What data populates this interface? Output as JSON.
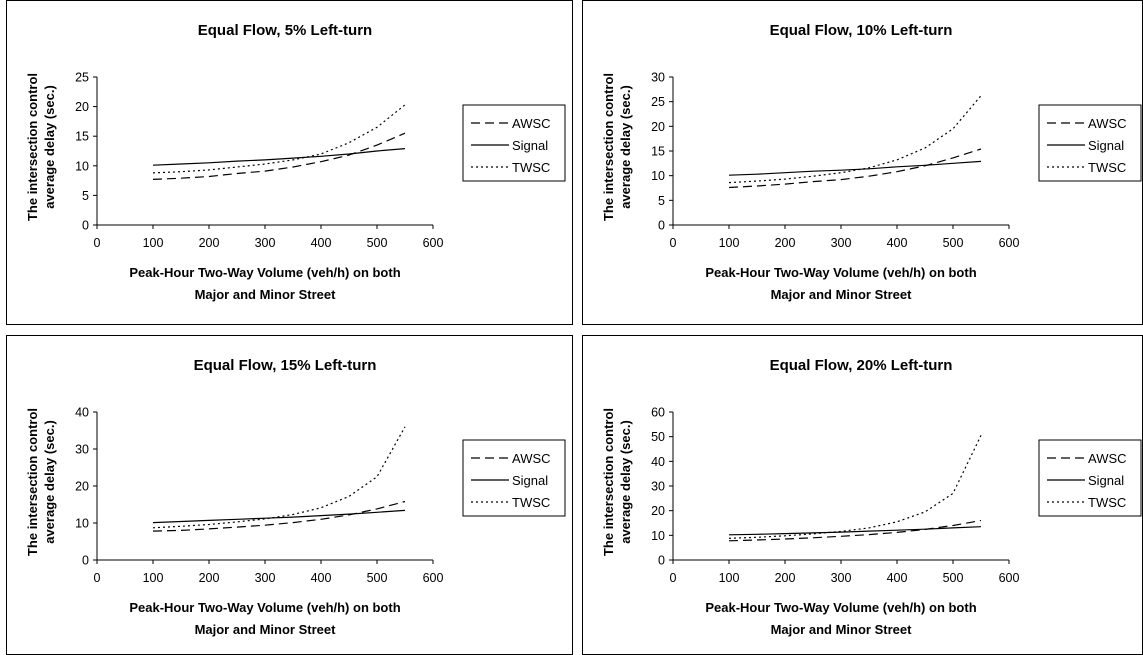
{
  "charts": [
    {
      "title": "Equal Flow, 5% Left-turn"
    },
    {
      "title": "Equal Flow, 10% Left-turn"
    },
    {
      "title": "Equal Flow, 15% Left-turn"
    },
    {
      "title": "Equal Flow, 20% Left-turn"
    }
  ],
  "chart_data": [
    {
      "type": "line",
      "title": "Equal Flow, 5% Left-turn",
      "xlabel": [
        "Peak-Hour Two-Way Volume (veh/h) on both",
        "Major and Minor Street"
      ],
      "ylabel": [
        "The intersection control",
        "average delay (sec.)"
      ],
      "xlim": [
        0,
        600
      ],
      "ylim": [
        0,
        25
      ],
      "xticks": [
        0,
        100,
        200,
        300,
        400,
        500,
        600
      ],
      "yticks": [
        0,
        5,
        10,
        15,
        20,
        25
      ],
      "grid": false,
      "legend": "right",
      "x": [
        100,
        150,
        200,
        250,
        300,
        350,
        400,
        450,
        500,
        550
      ],
      "series": [
        {
          "name": "AWSC",
          "style": "dashed",
          "values": [
            7.7,
            7.9,
            8.2,
            8.7,
            9.1,
            9.8,
            10.7,
            11.8,
            13.5,
            15.5
          ]
        },
        {
          "name": "Signal",
          "style": "solid",
          "values": [
            10.1,
            10.3,
            10.5,
            10.8,
            11.0,
            11.3,
            11.6,
            12.0,
            12.5,
            12.9
          ]
        },
        {
          "name": "TWSC",
          "style": "dotted",
          "values": [
            8.8,
            9.0,
            9.3,
            9.8,
            10.3,
            11.0,
            12.0,
            13.9,
            16.5,
            20.3
          ]
        }
      ]
    },
    {
      "type": "line",
      "title": "Equal Flow, 10% Left-turn",
      "xlabel": [
        "Peak-Hour Two-Way Volume (veh/h) on both",
        "Major and Minor Street"
      ],
      "ylabel": [
        "The intersection control",
        "average delay (sec.)"
      ],
      "xlim": [
        0,
        600
      ],
      "ylim": [
        0,
        30
      ],
      "xticks": [
        0,
        100,
        200,
        300,
        400,
        500,
        600
      ],
      "yticks": [
        0,
        5,
        10,
        15,
        20,
        25,
        30
      ],
      "grid": false,
      "legend": "right",
      "x": [
        100,
        150,
        200,
        250,
        300,
        350,
        400,
        450,
        500,
        550
      ],
      "series": [
        {
          "name": "AWSC",
          "style": "dashed",
          "values": [
            7.6,
            7.9,
            8.3,
            8.8,
            9.2,
            9.9,
            10.8,
            12.0,
            13.6,
            15.4
          ]
        },
        {
          "name": "Signal",
          "style": "solid",
          "values": [
            10.1,
            10.3,
            10.6,
            10.9,
            11.1,
            11.4,
            11.8,
            12.1,
            12.5,
            12.9
          ]
        },
        {
          "name": "TWSC",
          "style": "dotted",
          "values": [
            8.6,
            8.9,
            9.3,
            9.9,
            10.6,
            11.6,
            13.2,
            15.6,
            19.5,
            26.2
          ]
        }
      ]
    },
    {
      "type": "line",
      "title": "Equal Flow, 15% Left-turn",
      "xlabel": [
        "Peak-Hour Two-Way Volume (veh/h) on both",
        "Major and Minor Street"
      ],
      "ylabel": [
        "The intersection control",
        "average delay (sec.)"
      ],
      "xlim": [
        0,
        600
      ],
      "ylim": [
        0,
        40
      ],
      "xticks": [
        0,
        100,
        200,
        300,
        400,
        500,
        600
      ],
      "yticks": [
        0,
        10,
        20,
        30,
        40
      ],
      "grid": false,
      "legend": "right",
      "x": [
        100,
        150,
        200,
        250,
        300,
        350,
        400,
        450,
        500,
        550
      ],
      "series": [
        {
          "name": "AWSC",
          "style": "dashed",
          "values": [
            7.8,
            8.0,
            8.4,
            8.9,
            9.4,
            10.1,
            11.0,
            12.2,
            13.8,
            15.8
          ]
        },
        {
          "name": "Signal",
          "style": "solid",
          "values": [
            10.1,
            10.4,
            10.7,
            11.0,
            11.3,
            11.6,
            12.0,
            12.4,
            12.9,
            13.4
          ]
        },
        {
          "name": "TWSC",
          "style": "dotted",
          "values": [
            8.7,
            9.1,
            9.6,
            10.3,
            11.1,
            12.3,
            14.1,
            17.2,
            22.5,
            36.0
          ]
        }
      ]
    },
    {
      "type": "line",
      "title": "Equal Flow, 20% Left-turn",
      "xlabel": [
        "Peak-Hour Two-Way Volume (veh/h) on both",
        "Major and Minor Street"
      ],
      "ylabel": [
        "The intersection control",
        "average delay (sec.)"
      ],
      "xlim": [
        0,
        600
      ],
      "ylim": [
        0,
        60
      ],
      "xticks": [
        0,
        100,
        200,
        300,
        400,
        500,
        600
      ],
      "yticks": [
        0,
        10,
        20,
        30,
        40,
        50,
        60
      ],
      "grid": false,
      "legend": "right",
      "x": [
        100,
        150,
        200,
        250,
        300,
        350,
        400,
        450,
        500,
        550
      ],
      "series": [
        {
          "name": "AWSC",
          "style": "dashed",
          "values": [
            7.8,
            8.1,
            8.5,
            9.0,
            9.6,
            10.3,
            11.2,
            12.4,
            14.0,
            16.0
          ]
        },
        {
          "name": "Signal",
          "style": "solid",
          "values": [
            10.2,
            10.4,
            10.7,
            11.0,
            11.3,
            11.7,
            12.1,
            12.5,
            13.0,
            13.5
          ]
        },
        {
          "name": "TWSC",
          "style": "dotted",
          "values": [
            8.8,
            9.2,
            9.8,
            10.6,
            11.6,
            13.0,
            15.5,
            19.5,
            27.0,
            50.5
          ]
        }
      ]
    }
  ]
}
